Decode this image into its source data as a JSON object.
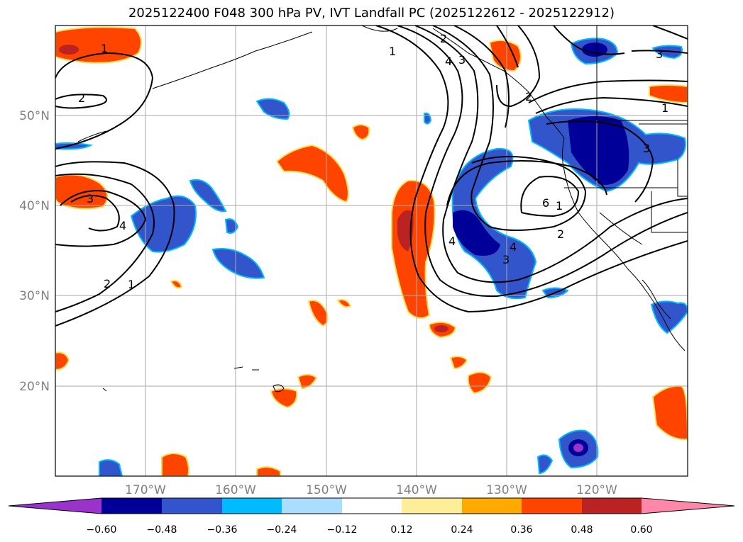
{
  "title": "2025122400 F048 300 hPa PV, IVT Landfall PC (2025122612 - 2025122912)",
  "lon_labels": [
    "170°W",
    "160°W",
    "150°W",
    "140°W",
    "130°W",
    "120°W"
  ],
  "lat_labels": [
    "50°N",
    "40°N",
    "30°N",
    "20°N"
  ],
  "colorbar": {
    "ticks": [
      "−0.60",
      "−0.48",
      "−0.36",
      "−0.24",
      "−0.12",
      "0.12",
      "0.24",
      "0.36",
      "0.48",
      "0.60"
    ],
    "colors": [
      "#9933cc",
      "#000099",
      "#3355cc",
      "#00bbff",
      "#aaddff",
      "#ffffff",
      "#ffee99",
      "#ffaa00",
      "#ff4400",
      "#bb2222",
      "#ff88aa"
    ]
  },
  "contour_labels": [
    "1",
    "2",
    "3",
    "4",
    "1",
    "2",
    "3",
    "4",
    "2",
    "1",
    "1",
    "4",
    "3",
    "2",
    "3",
    "4",
    "6",
    "2",
    "1",
    "3"
  ]
}
